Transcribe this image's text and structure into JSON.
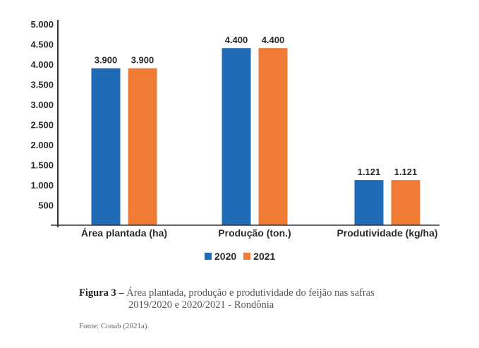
{
  "chart_data": {
    "type": "bar",
    "categories": [
      "Área plantada (ha)",
      "Produção (ton.)",
      "Produtividade (kg/ha)"
    ],
    "series": [
      {
        "name": "2020",
        "values": [
          3900,
          4400,
          1121
        ],
        "labels": [
          "3.900",
          "4.400",
          "1.121"
        ],
        "color": "#1f6bb5"
      },
      {
        "name": "2021",
        "values": [
          3900,
          4400,
          1121
        ],
        "labels": [
          "3.900",
          "4.400",
          "1.121"
        ],
        "color": "#f07b35"
      }
    ],
    "yticks": [
      500,
      1000,
      1500,
      2000,
      2500,
      3000,
      3500,
      4000,
      4500,
      5000
    ],
    "ytick_labels": [
      "500",
      "1.000",
      "1.500",
      "2.000",
      "2.500",
      "3.000",
      "3.500",
      "4.000",
      "4.500",
      "5.000"
    ],
    "ylim": [
      0,
      5000
    ],
    "legend_position": "bottom",
    "grid": false,
    "title": "",
    "xlabel": "",
    "ylabel": ""
  },
  "caption": {
    "figure_label": "Figura 3 –",
    "line1": " Área plantada, produção e produtividade do feijão nas safras",
    "line2": "2019/2020 e 2020/2021 - Rondônia"
  },
  "source": "Fonte: Conab (2021a)."
}
